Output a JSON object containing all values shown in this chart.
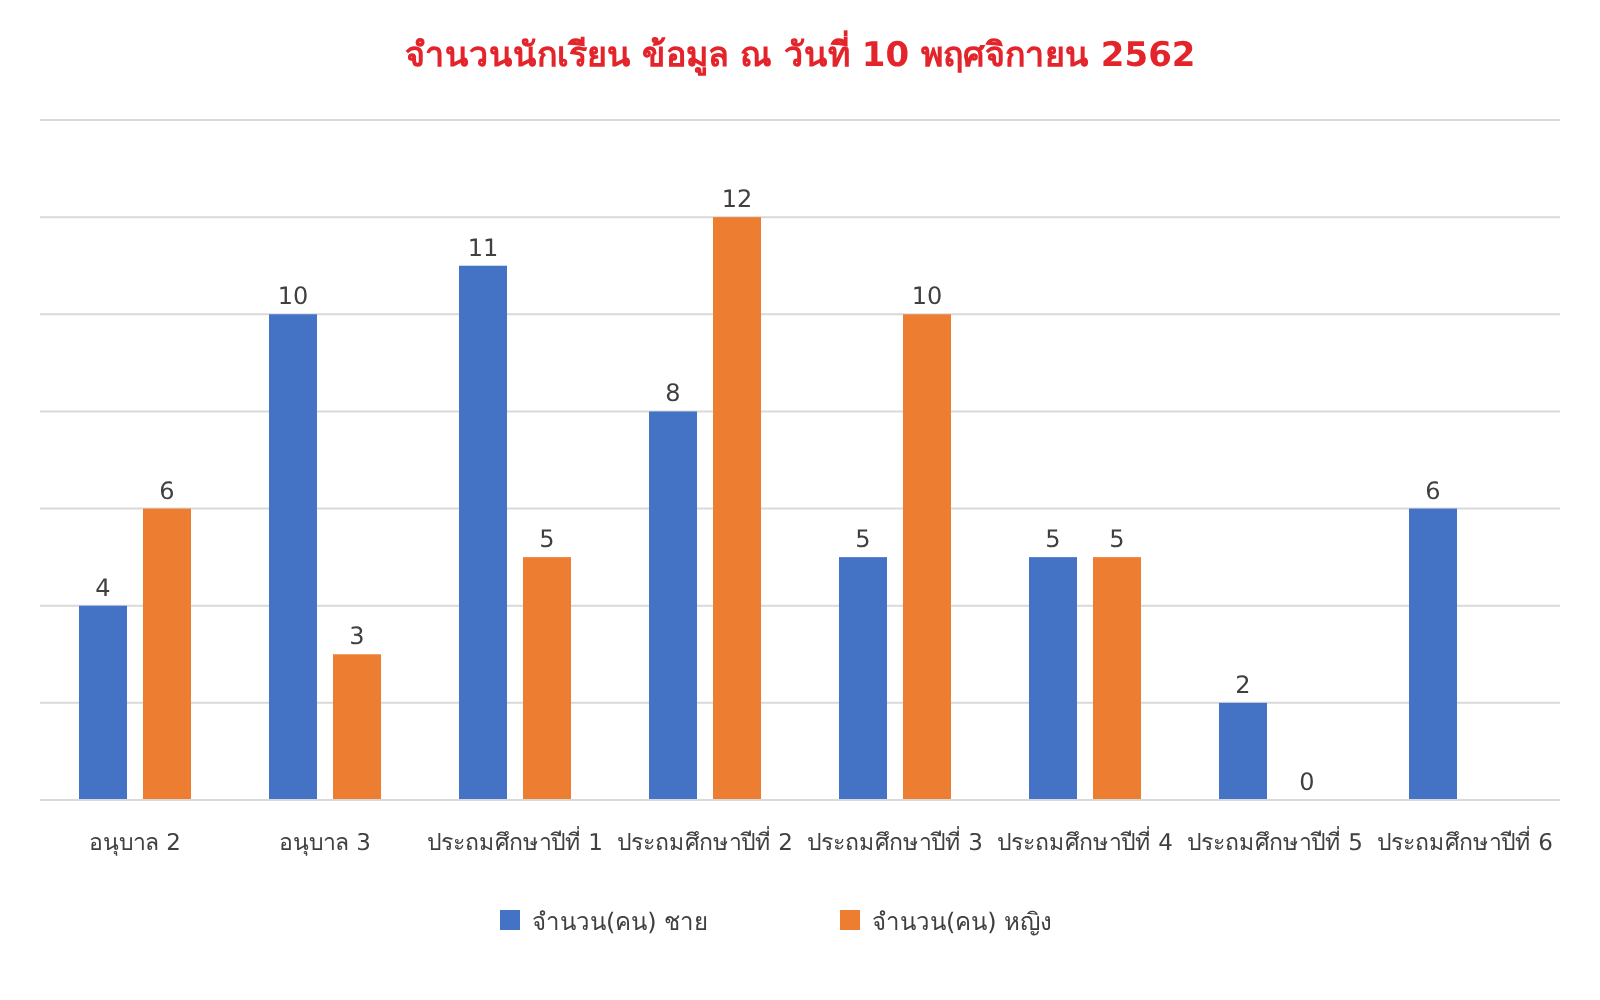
{
  "chart_data": {
    "type": "bar",
    "title": "จำนวนนักเรียน ข้อมูล ณ วันที่ 10 พฤศจิกายน 2562",
    "categories": [
      "อนุบาล 2",
      "อนุบาล 3",
      "ประถมศึกษาปีที่ 1",
      "ประถมศึกษาปีที่ 2",
      "ประถมศึกษาปีที่ 3",
      "ประถมศึกษาปีที่ 4",
      "ประถมศึกษาปีที่ 5",
      "ประถมศึกษาปีที่ 6"
    ],
    "series": [
      {
        "name": "จำนวน(คน) ชาย",
        "color": "#4472c4",
        "values": [
          4,
          10,
          11,
          8,
          5,
          5,
          2,
          6
        ]
      },
      {
        "name": "จำนวน(คน) หญิง",
        "color": "#ed7d31",
        "values": [
          6,
          3,
          5,
          12,
          10,
          5,
          0,
          null
        ]
      }
    ],
    "ylim": [
      0,
      14
    ],
    "yticks": [
      {
        "value": 0,
        "label": null
      },
      {
        "value": 2,
        "label": null
      },
      {
        "value": 4,
        "label": null
      },
      {
        "value": 6,
        "label": null
      },
      {
        "value": 8,
        "label": null
      },
      {
        "value": 10,
        "label": null
      },
      {
        "value": 12,
        "label": null
      },
      {
        "value": 14,
        "label": null
      }
    ],
    "grid": "y",
    "legend": "bottom",
    "data_labels": true,
    "tick_labels": "x"
  }
}
